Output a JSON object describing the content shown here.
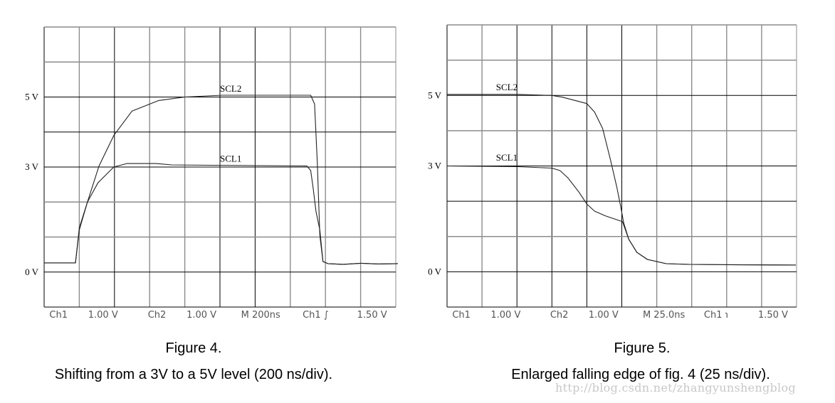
{
  "chart_data": [
    {
      "type": "line",
      "title": "Figure 4.",
      "subtitle": "Shifting from a 3V to a 5V level (200 ns/div).",
      "x_unit": "ns",
      "xlim": [
        0,
        2000
      ],
      "ylim": [
        -1,
        7
      ],
      "grid": true,
      "y_tick_labels": [
        {
          "v": 5,
          "label": "5 V"
        },
        {
          "v": 3,
          "label": "3 V"
        },
        {
          "v": 0,
          "label": "0 V"
        }
      ],
      "scope_readout": [
        "Ch1",
        "1.00 V",
        "Ch2",
        "1.00 V",
        "M  200ns",
        "Ch1 ∫",
        "1.50 V"
      ],
      "series": [
        {
          "name": "SCL2",
          "label_at": [
            1000,
            5.15
          ],
          "x": [
            0,
            178,
            200,
            246,
            312,
            396,
            500,
            652,
            800,
            1012,
            1516,
            1538,
            1554,
            1568,
            1586,
            1614,
            1700,
            1800,
            1900,
            2012
          ],
          "y": [
            0.26,
            0.26,
            1.26,
            2.0,
            3.03,
            3.9,
            4.6,
            4.9,
            5.0,
            5.05,
            5.05,
            4.8,
            3.1,
            1.05,
            0.3,
            0.24,
            0.22,
            0.25,
            0.23,
            0.24
          ]
        },
        {
          "name": "SCL1",
          "label_at": [
            1000,
            3.15
          ],
          "x": [
            0,
            178,
            200,
            246,
            306,
            396,
            470,
            636,
            726,
            952,
            1494,
            1516,
            1530,
            1546,
            1568,
            1586,
            1614,
            1700,
            1800,
            1900,
            2012
          ],
          "y": [
            0.26,
            0.26,
            1.2,
            2.0,
            2.55,
            3.0,
            3.1,
            3.1,
            3.06,
            3.05,
            3.03,
            2.9,
            2.4,
            1.73,
            1.2,
            0.3,
            0.24,
            0.22,
            0.25,
            0.23,
            0.24
          ]
        }
      ]
    },
    {
      "type": "line",
      "title": "Figure 5.",
      "subtitle": "Enlarged falling edge of fig. 4 (25 ns/div).",
      "x_unit": "ns",
      "xlim": [
        0,
        250
      ],
      "ylim": [
        -1,
        7
      ],
      "grid": true,
      "y_tick_labels": [
        {
          "v": 5,
          "label": "5 V"
        },
        {
          "v": 3,
          "label": "3 V"
        },
        {
          "v": 0,
          "label": "0 V"
        }
      ],
      "scope_readout": [
        "Ch1",
        "1.00 V",
        "Ch2",
        "1.00 V",
        "M 25.0ns",
        "Ch1 ℩",
        "1.50 V"
      ],
      "series": [
        {
          "name": "SCL2",
          "label_at": [
            35,
            5.15
          ],
          "x": [
            0,
            50.5,
            75,
            82.5,
            100,
            105.5,
            111.3,
            116.8,
            121.5,
            124.5,
            126.3,
            130,
            135.8,
            143.3,
            156.8,
            173.8,
            200,
            249.5
          ],
          "y": [
            5.03,
            5.03,
            5.0,
            4.95,
            4.77,
            4.53,
            4.06,
            3.19,
            2.39,
            1.79,
            1.39,
            0.92,
            0.55,
            0.35,
            0.23,
            0.21,
            0.2,
            0.19
          ]
        },
        {
          "name": "SCL1",
          "label_at": [
            35,
            3.15
          ],
          "x": [
            0,
            50.5,
            75,
            80.8,
            86.5,
            94.3,
            100,
            105.5,
            113,
            125.5,
            130,
            135.8,
            143.3,
            156.8,
            173.8,
            200,
            249.5
          ],
          "y": [
            3.0,
            2.98,
            2.94,
            2.87,
            2.66,
            2.26,
            1.92,
            1.72,
            1.59,
            1.42,
            0.92,
            0.55,
            0.35,
            0.23,
            0.21,
            0.2,
            0.19
          ]
        }
      ]
    }
  ],
  "watermark": "http://blog.csdn.net/zhangyunshengblog",
  "colors": {
    "grid_major": "#000000",
    "grid_minor": "#8c8c8c",
    "trace": "#222222",
    "readout": "#555555"
  }
}
